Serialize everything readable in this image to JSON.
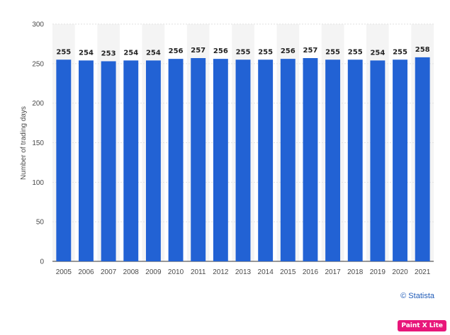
{
  "chart_data": {
    "type": "bar",
    "categories": [
      "2005",
      "2006",
      "2007",
      "2008",
      "2009",
      "2010",
      "2011",
      "2012",
      "2013",
      "2014",
      "2015",
      "2016",
      "2017",
      "2018",
      "2019",
      "2020",
      "2021"
    ],
    "values": [
      255,
      254,
      253,
      254,
      254,
      256,
      257,
      256,
      255,
      255,
      256,
      257,
      255,
      255,
      254,
      255,
      258
    ],
    "ylabel": "Number of trading days",
    "xlabel": "",
    "ylim": [
      0,
      300
    ],
    "yticks": [
      0,
      50,
      100,
      150,
      200,
      250,
      300
    ],
    "grid": true,
    "bar_color": "#2262d4",
    "band_color": "#f4f4f4"
  },
  "credit": "© Statista",
  "badge": "Paint X Lite"
}
